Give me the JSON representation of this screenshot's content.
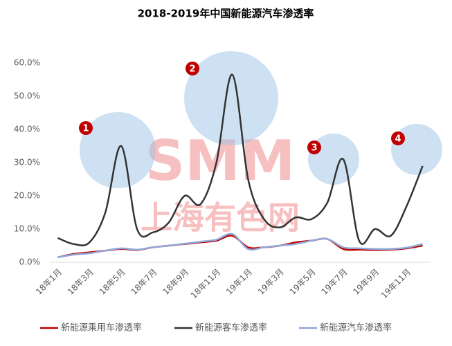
{
  "chart_data": {
    "type": "line",
    "title": "2018-2019年中国新能源汽车渗透率",
    "categories": [
      "18年1月",
      null,
      "18年3月",
      null,
      "18年5月",
      null,
      "18年7月",
      null,
      "18年9月",
      null,
      "18年11月",
      null,
      "19年1月",
      null,
      "19年3月",
      null,
      "19年5月",
      null,
      "19年7月",
      null,
      "19年9月",
      null,
      "19年11月",
      null
    ],
    "series": [
      {
        "name": "新能源乘用车渗透率",
        "color": "#c00000",
        "values": [
          1.5,
          2.5,
          3,
          3.5,
          4,
          3.7,
          4.5,
          5,
          5.5,
          6,
          6.5,
          8,
          4.5,
          4.5,
          5,
          6,
          6.5,
          7,
          4,
          3.8,
          3.7,
          3.8,
          4.2,
          5
        ]
      },
      {
        "name": "新能源客车渗透率",
        "color": "#333333",
        "values": [
          7.3,
          5.5,
          6,
          15,
          35,
          10,
          9,
          12,
          20,
          17.5,
          30,
          56.5,
          25,
          13,
          10.5,
          13.5,
          13,
          18,
          31,
          6.5,
          10,
          8,
          17,
          29
        ]
      },
      {
        "name": "新能源汽车渗透率",
        "color": "#8ea9db",
        "values": [
          1.5,
          2.3,
          2.7,
          3.5,
          4.2,
          3.8,
          4.5,
          5,
          5.6,
          6.2,
          6.8,
          8.5,
          4,
          4.5,
          5,
          5.5,
          6.5,
          7,
          4.5,
          4.2,
          4,
          4,
          4.4,
          5.5
        ]
      }
    ],
    "ylim": [
      0,
      60
    ],
    "yticks": [
      {
        "value": 0,
        "label": "0.0%"
      },
      {
        "value": 10,
        "label": "10.0%"
      },
      {
        "value": 20,
        "label": "20.0%"
      },
      {
        "value": 30,
        "label": "30.0%"
      },
      {
        "value": 40,
        "label": "40.0%"
      },
      {
        "value": 50,
        "label": "50.0%"
      },
      {
        "value": 60,
        "label": "60.0%"
      }
    ],
    "annotations": [
      "1",
      "2",
      "3",
      "4"
    ],
    "watermark": [
      "SMM",
      "上海有色网"
    ]
  }
}
